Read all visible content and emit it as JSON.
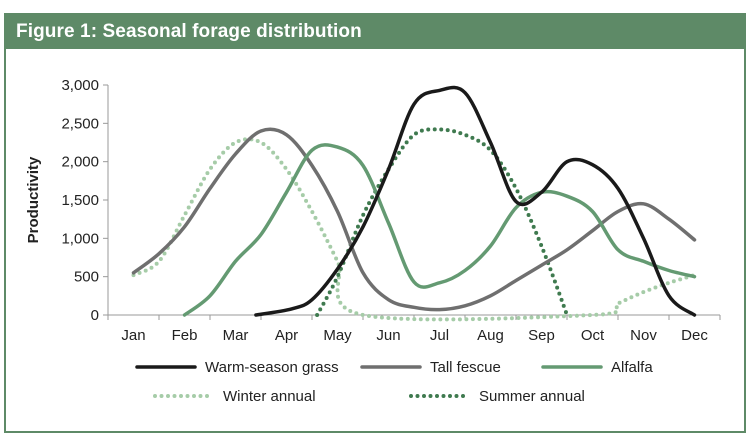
{
  "figure": {
    "title": "Figure 1: Seasonal forage distribution"
  },
  "chart_data": {
    "type": "line",
    "title": "Figure 1: Seasonal forage distribution",
    "xlabel": "",
    "ylabel": "Productivity",
    "ylim": [
      0,
      3000
    ],
    "yticks": [
      0,
      500,
      1000,
      1500,
      2000,
      2500,
      3000
    ],
    "ytick_labels": [
      "0",
      "500",
      "1,000",
      "1,500",
      "2,000",
      "2,500",
      "3,000"
    ],
    "grid": false,
    "legend_position": "bottom",
    "categories": [
      "Jan",
      "Feb",
      "Mar",
      "Apr",
      "May",
      "Jun",
      "Jul",
      "Aug",
      "Sep",
      "Oct",
      "Nov",
      "Dec"
    ],
    "series": [
      {
        "name": "Warm-season grass",
        "color": "#1a1a1a",
        "style": "solid",
        "points": [
          [
            2.4,
            0
          ],
          [
            3.1,
            80
          ],
          [
            3.5,
            200
          ],
          [
            4.0,
            600
          ],
          [
            4.5,
            1150
          ],
          [
            5.0,
            1900
          ],
          [
            5.5,
            2750
          ],
          [
            6.0,
            2930
          ],
          [
            6.5,
            2900
          ],
          [
            7.0,
            2250
          ],
          [
            7.5,
            1480
          ],
          [
            8.0,
            1600
          ],
          [
            8.5,
            2000
          ],
          [
            9.0,
            1960
          ],
          [
            9.5,
            1650
          ],
          [
            10.0,
            1000
          ],
          [
            10.5,
            250
          ],
          [
            11.0,
            0
          ]
        ]
      },
      {
        "name": "Tall fescue",
        "color": "#6f6f6f",
        "style": "solid",
        "points": [
          [
            0.0,
            550
          ],
          [
            0.5,
            800
          ],
          [
            1.0,
            1150
          ],
          [
            1.5,
            1650
          ],
          [
            2.0,
            2100
          ],
          [
            2.5,
            2400
          ],
          [
            3.0,
            2350
          ],
          [
            3.5,
            1950
          ],
          [
            4.0,
            1350
          ],
          [
            4.5,
            550
          ],
          [
            5.0,
            200
          ],
          [
            5.5,
            100
          ],
          [
            6.0,
            70
          ],
          [
            6.5,
            120
          ],
          [
            7.0,
            250
          ],
          [
            7.5,
            450
          ],
          [
            8.0,
            650
          ],
          [
            8.5,
            850
          ],
          [
            9.0,
            1100
          ],
          [
            9.5,
            1350
          ],
          [
            10.0,
            1450
          ],
          [
            10.5,
            1250
          ],
          [
            11.0,
            980
          ]
        ]
      },
      {
        "name": "Alfalfa",
        "color": "#649a72",
        "style": "solid",
        "points": [
          [
            1.0,
            0
          ],
          [
            1.5,
            250
          ],
          [
            2.0,
            700
          ],
          [
            2.5,
            1050
          ],
          [
            3.0,
            1600
          ],
          [
            3.5,
            2150
          ],
          [
            4.0,
            2190
          ],
          [
            4.5,
            1950
          ],
          [
            5.0,
            1200
          ],
          [
            5.5,
            430
          ],
          [
            6.0,
            420
          ],
          [
            6.5,
            580
          ],
          [
            7.0,
            900
          ],
          [
            7.5,
            1400
          ],
          [
            8.0,
            1600
          ],
          [
            8.5,
            1550
          ],
          [
            9.0,
            1350
          ],
          [
            9.5,
            850
          ],
          [
            10.0,
            700
          ],
          [
            10.5,
            580
          ],
          [
            11.0,
            500
          ]
        ]
      },
      {
        "name": "Winter annual",
        "color": "#a6cca8",
        "style": "dotted",
        "points": [
          [
            0.0,
            520
          ],
          [
            0.5,
            700
          ],
          [
            1.0,
            1300
          ],
          [
            1.5,
            1900
          ],
          [
            2.0,
            2250
          ],
          [
            2.5,
            2250
          ],
          [
            3.0,
            1900
          ],
          [
            3.5,
            1350
          ],
          [
            4.0,
            700
          ],
          [
            4.5,
            0
          ],
          [
            9.0,
            0
          ],
          [
            9.5,
            150
          ],
          [
            10.0,
            300
          ],
          [
            10.5,
            420
          ],
          [
            11.0,
            520
          ]
        ]
      },
      {
        "name": "Summer annual",
        "color": "#3f7a4f",
        "style": "dotted",
        "points": [
          [
            3.6,
            0
          ],
          [
            4.0,
            500
          ],
          [
            4.5,
            1300
          ],
          [
            5.0,
            1900
          ],
          [
            5.5,
            2350
          ],
          [
            6.0,
            2420
          ],
          [
            6.5,
            2350
          ],
          [
            7.0,
            2150
          ],
          [
            7.5,
            1650
          ],
          [
            8.0,
            900
          ],
          [
            8.5,
            0
          ]
        ]
      }
    ]
  }
}
